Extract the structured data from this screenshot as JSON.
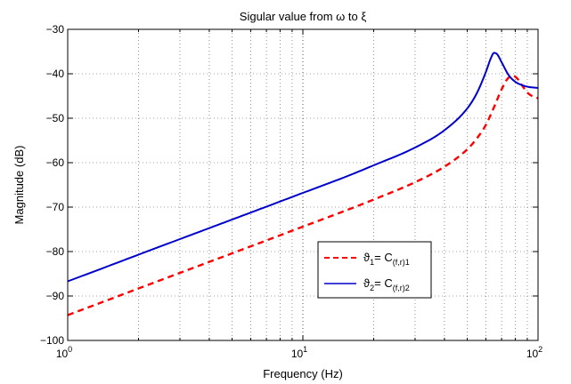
{
  "chart_data": {
    "type": "line",
    "title": "Sigular value from ω to ξ",
    "xlabel": "Frequency  (Hz)",
    "ylabel": "Magnitude (dB)",
    "xscale": "log",
    "xlim": [
      1,
      100
    ],
    "ylim": [
      -100,
      -30
    ],
    "grid": true,
    "legend_position": "lower-right",
    "x_ticks": [
      {
        "value": 1,
        "base": "10",
        "exp": "0"
      },
      {
        "value": 10,
        "base": "10",
        "exp": "1"
      },
      {
        "value": 100,
        "base": "10",
        "exp": "2"
      }
    ],
    "y_ticks": [
      "-100",
      "-90",
      "-80",
      "-70",
      "-60",
      "-50",
      "-40",
      "-30"
    ],
    "series": [
      {
        "name_main": "ϑ",
        "name_sub1": "1",
        "name_mid": "= C",
        "name_sub2": "(f,r)1",
        "color": "#ff0000",
        "style": "dashed",
        "points": [
          [
            1,
            -94.3
          ],
          [
            1.5,
            -90.8
          ],
          [
            2,
            -88.3
          ],
          [
            3,
            -84.8
          ],
          [
            5,
            -80.4
          ],
          [
            7,
            -77.5
          ],
          [
            10,
            -74.4
          ],
          [
            15,
            -70.9
          ],
          [
            20,
            -68.3
          ],
          [
            30,
            -64.4
          ],
          [
            40,
            -60.9
          ],
          [
            50,
            -57.0
          ],
          [
            55,
            -54.5
          ],
          [
            60,
            -51.5
          ],
          [
            65,
            -47.5
          ],
          [
            70,
            -43.5
          ],
          [
            74,
            -41.2
          ],
          [
            78,
            -40.4
          ],
          [
            82,
            -41.2
          ],
          [
            86,
            -42.8
          ],
          [
            90,
            -44.2
          ],
          [
            95,
            -45.1
          ],
          [
            100,
            -45.5
          ]
        ]
      },
      {
        "name_main": "ϑ",
        "name_sub1": "2",
        "name_mid": "= C",
        "name_sub2": "(f,r)2",
        "color": "#0000cc",
        "style": "solid",
        "points": [
          [
            1,
            -86.7
          ],
          [
            1.5,
            -83.2
          ],
          [
            2,
            -80.7
          ],
          [
            3,
            -77.2
          ],
          [
            5,
            -72.8
          ],
          [
            7,
            -69.9
          ],
          [
            10,
            -66.8
          ],
          [
            15,
            -63.3
          ],
          [
            20,
            -60.6
          ],
          [
            30,
            -56.6
          ],
          [
            40,
            -52.7
          ],
          [
            50,
            -47.8
          ],
          [
            55,
            -44.3
          ],
          [
            60,
            -39.6
          ],
          [
            63,
            -36.5
          ],
          [
            65,
            -35.3
          ],
          [
            67,
            -35.6
          ],
          [
            70,
            -37.4
          ],
          [
            75,
            -40.3
          ],
          [
            80,
            -41.8
          ],
          [
            85,
            -42.5
          ],
          [
            90,
            -42.9
          ],
          [
            100,
            -43.2
          ]
        ]
      }
    ]
  }
}
